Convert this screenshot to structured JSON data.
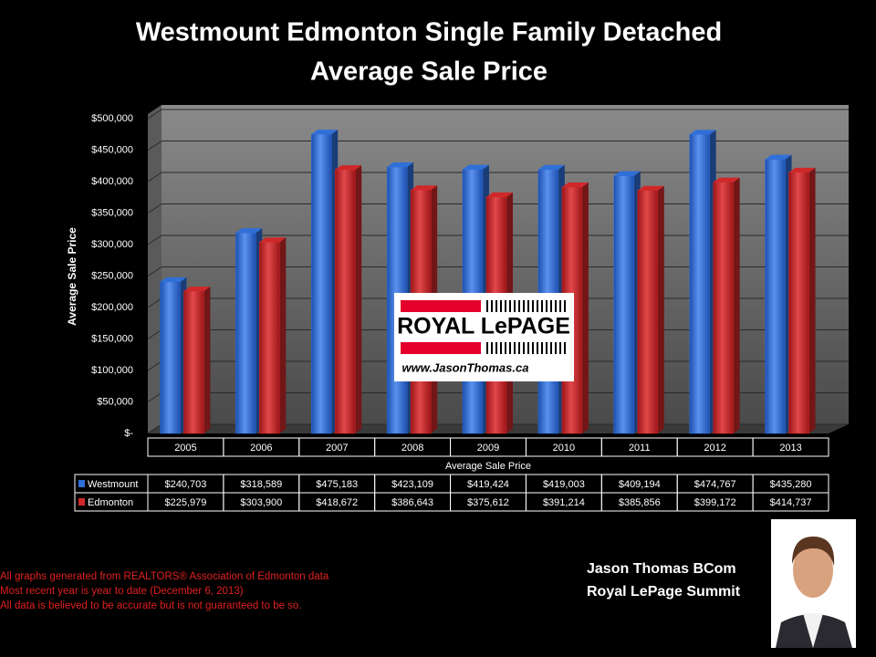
{
  "chart_data": {
    "type": "bar",
    "title": [
      "Westmount Edmonton Single Family Detached",
      "Average Sale Price"
    ],
    "y_label": "Average Sale Price",
    "x_label": "Average Sale Price",
    "categories": [
      "2005",
      "2006",
      "2007",
      "2008",
      "2009",
      "2010",
      "2011",
      "2012",
      "2013"
    ],
    "series": [
      {
        "name": "Westmount",
        "color": "#2f6fd8",
        "values": [
          240703,
          318589,
          475183,
          423109,
          419424,
          419003,
          409194,
          474767,
          435280
        ],
        "value_labels": [
          "$240,703",
          "$318,589",
          "$475,183",
          "$423,109",
          "$419,424",
          "$419,003",
          "$409,194",
          "$474,767",
          "$435,280"
        ]
      },
      {
        "name": "Edmonton",
        "color": "#d0282a",
        "values": [
          225979,
          303900,
          418672,
          386643,
          375612,
          391214,
          385856,
          399172,
          414737
        ],
        "value_labels": [
          "$225,979",
          "$303,900",
          "$418,672",
          "$386,643",
          "$375,612",
          "$391,214",
          "$385,856",
          "$399,172",
          "$414,737"
        ]
      }
    ],
    "ylim": [
      0,
      500000
    ],
    "yticks": [
      {
        "value": 0,
        "label": "$-"
      },
      {
        "value": 50000,
        "label": "$50,000"
      },
      {
        "value": 100000,
        "label": "$100,000"
      },
      {
        "value": 150000,
        "label": "$150,000"
      },
      {
        "value": 200000,
        "label": "$200,000"
      },
      {
        "value": 250000,
        "label": "$250,000"
      },
      {
        "value": 300000,
        "label": "$300,000"
      },
      {
        "value": 350000,
        "label": "$350,000"
      },
      {
        "value": 400000,
        "label": "$400,000"
      },
      {
        "value": 450000,
        "label": "$450,000"
      },
      {
        "value": 500000,
        "label": "$500,000"
      }
    ],
    "grid": true
  },
  "logo": {
    "brand": "ROYAL LePAGE",
    "url": "www.JasonThomas.ca"
  },
  "footnotes": [
    "All graphs generated from REALTORS® Association of Edmonton data",
    "Most recent year is year to date (December 6, 2013)",
    "All data is believed to be accurate but is not guaranteed to be so."
  ],
  "agent": {
    "name": "Jason Thomas BCom",
    "company": "Royal LePage Summit"
  }
}
